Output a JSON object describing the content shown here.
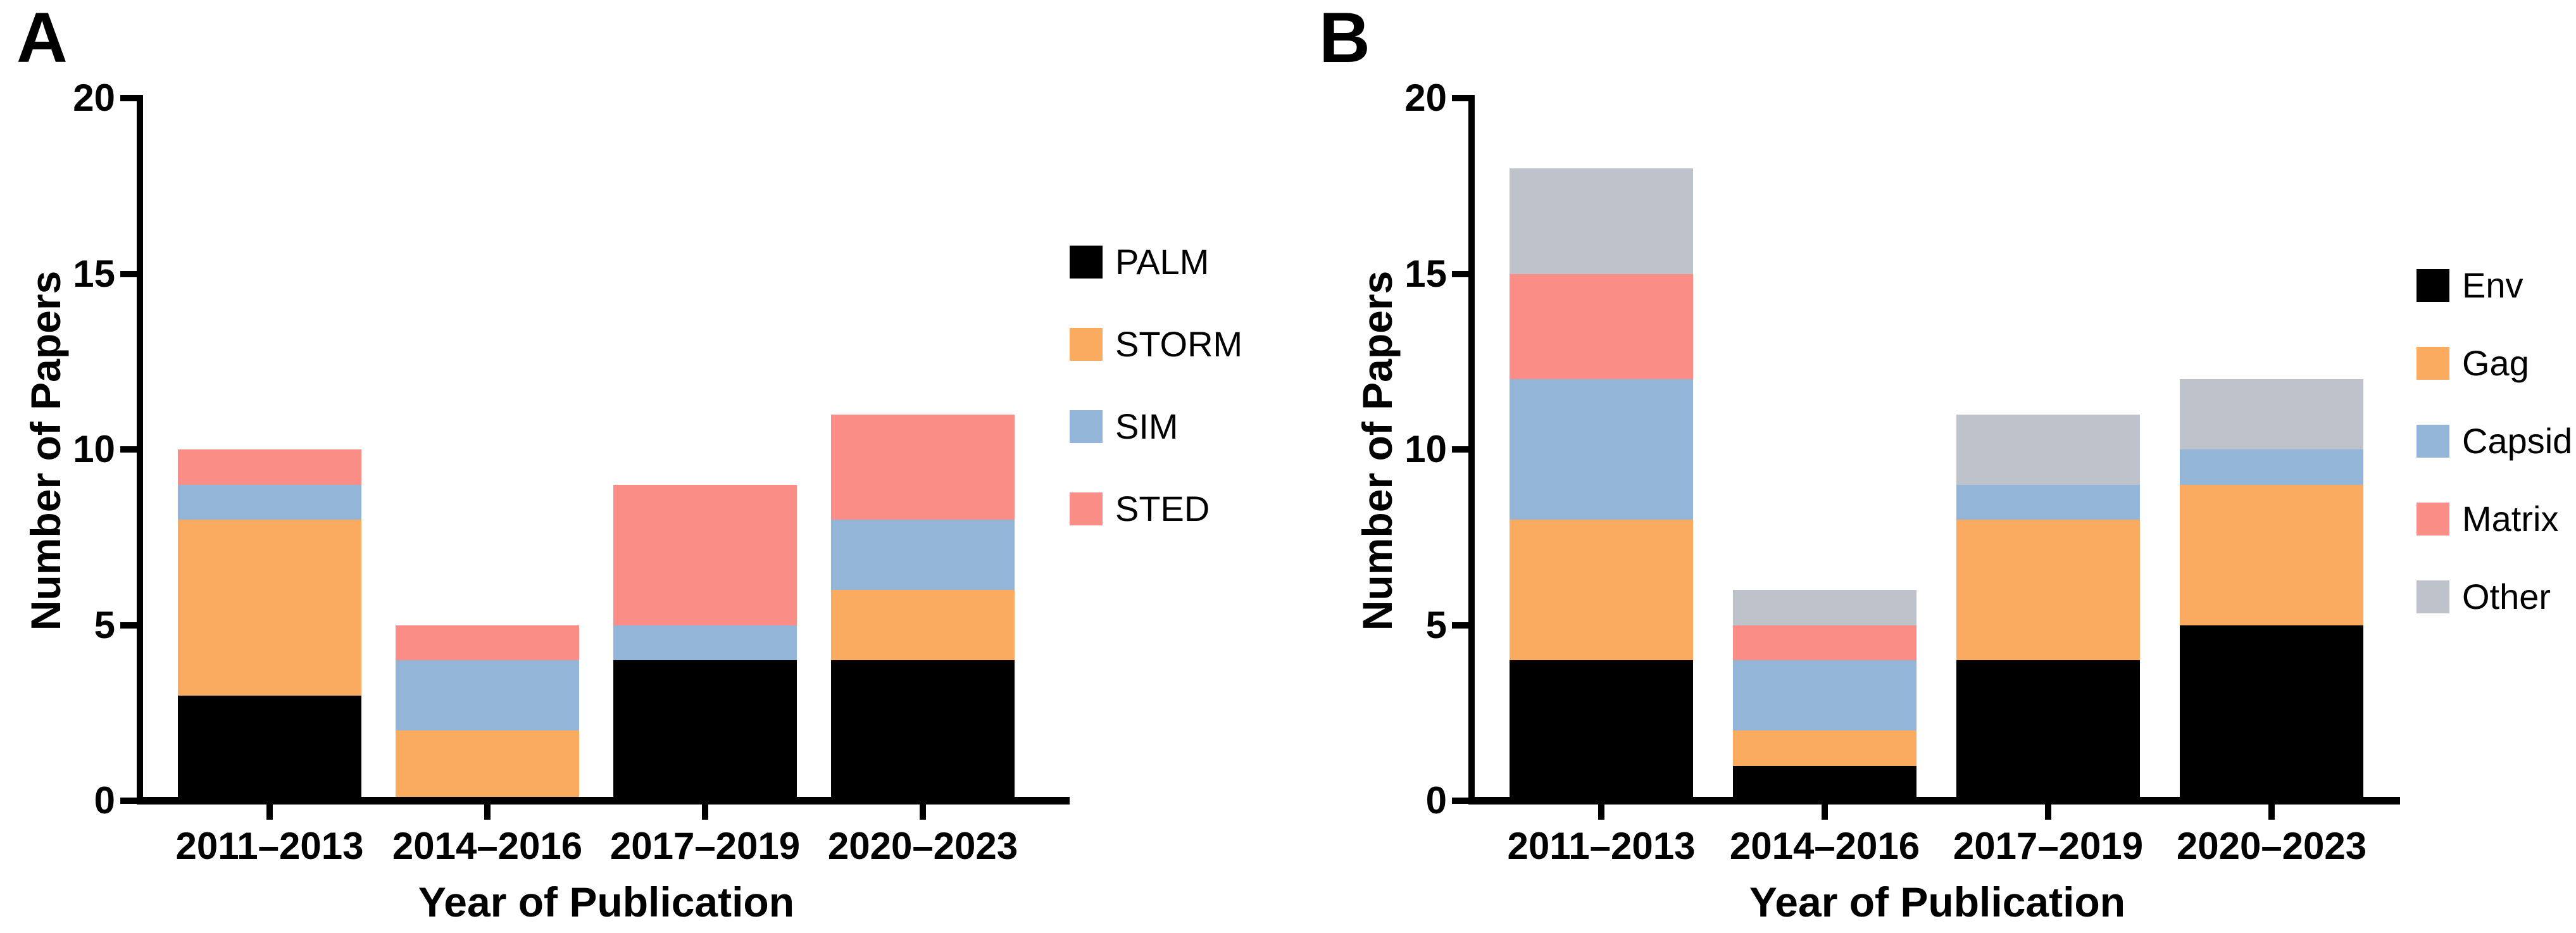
{
  "figure": {
    "background": "#ffffff",
    "text_color": "#000000"
  },
  "chart_data": [
    {
      "type": "bar",
      "stacked": true,
      "panel": "A",
      "categories": [
        "2011–2013",
        "2014–2016",
        "2017–2019",
        "2020–2023"
      ],
      "series": [
        {
          "name": "PALM",
          "color": "#000000",
          "values": [
            3,
            0,
            4,
            4
          ]
        },
        {
          "name": "STORM",
          "color": "#FAAB5F",
          "values": [
            5,
            2,
            0,
            2
          ]
        },
        {
          "name": "SIM",
          "color": "#93B5D7",
          "values": [
            1,
            2,
            1,
            2
          ]
        },
        {
          "name": "STED",
          "color": "#FA8E86",
          "values": [
            1,
            1,
            4,
            3
          ]
        }
      ],
      "totals": [
        10,
        5,
        9,
        11
      ],
      "xlabel": "Year of Publication",
      "ylabel": "Number of Papers",
      "ylim": [
        0,
        20
      ],
      "yticks": [
        0,
        5,
        10,
        15,
        20
      ],
      "grid": false,
      "legend_position": "right"
    },
    {
      "type": "bar",
      "stacked": true,
      "panel": "B",
      "categories": [
        "2011–2013",
        "2014–2016",
        "2017–2019",
        "2020–2023"
      ],
      "series": [
        {
          "name": "Env",
          "color": "#000000",
          "values": [
            4,
            1,
            4,
            5
          ]
        },
        {
          "name": "Gag",
          "color": "#FAAB5F",
          "values": [
            4,
            1,
            4,
            4
          ]
        },
        {
          "name": "Capsid",
          "color": "#93B5D7",
          "values": [
            4,
            2,
            1,
            1
          ]
        },
        {
          "name": "Matrix",
          "color": "#FA8E86",
          "values": [
            3,
            1,
            0,
            0
          ]
        },
        {
          "name": "Other",
          "color": "#BEC2CB",
          "values": [
            3,
            1,
            2,
            2
          ]
        }
      ],
      "totals": [
        18,
        6,
        11,
        12
      ],
      "xlabel": "Year of Publication",
      "ylabel": "Number of Papers",
      "ylim": [
        0,
        20
      ],
      "yticks": [
        0,
        5,
        10,
        15,
        20
      ],
      "grid": false,
      "legend_position": "right"
    }
  ]
}
